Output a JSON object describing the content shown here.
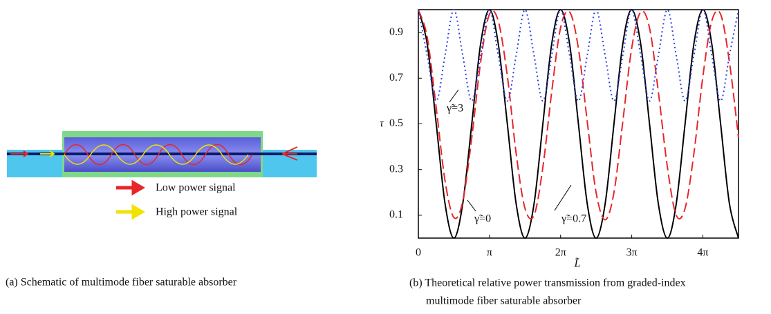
{
  "schematic": {
    "legend": [
      "Low power signal",
      "High power signal"
    ],
    "caption": "(a) Schematic of multimode fiber saturable absorber"
  },
  "chart_data": {
    "type": "line",
    "caption": [
      "(b) Theoretical relative power transmission from graded-index",
      "multimode fiber saturable absorber"
    ],
    "x_label": "L̃",
    "y_label": "τ",
    "x": [
      0,
      0.39,
      0.79,
      1.18,
      1.57,
      1.96,
      2.36,
      2.75,
      3.14,
      3.53,
      3.93,
      4.32,
      4.71,
      5.11,
      5.5,
      5.89,
      6.28,
      6.68,
      7.07,
      7.46,
      7.85,
      8.25,
      8.64,
      9.03,
      9.42,
      9.82,
      10.21,
      10.6,
      11.0,
      11.39,
      11.78,
      12.17,
      12.57,
      12.96,
      13.35,
      13.74,
      14.14
    ],
    "series": [
      {
        "name": "γ̃=0",
        "color": "#000000",
        "dash": "",
        "values": [
          1,
          0.85,
          0.5,
          0.15,
          0,
          0.15,
          0.5,
          0.85,
          1,
          0.85,
          0.5,
          0.15,
          0,
          0.15,
          0.5,
          0.85,
          1,
          0.85,
          0.5,
          0.15,
          0,
          0.15,
          0.5,
          0.85,
          1,
          0.85,
          0.5,
          0.15,
          0,
          0.15,
          0.5,
          0.85,
          1,
          0.85,
          0.5,
          0.15,
          0
        ]
      },
      {
        "name": "γ̃=0.7",
        "color": "#e8262a",
        "dash": "14 6",
        "values": [
          1,
          0.88,
          0.57,
          0.25,
          0.09,
          0.16,
          0.44,
          0.77,
          0.98,
          0.95,
          0.71,
          0.37,
          0.13,
          0.1,
          0.31,
          0.64,
          0.92,
          0.99,
          0.83,
          0.51,
          0.2,
          0.08,
          0.2,
          0.51,
          0.83,
          0.99,
          0.92,
          0.64,
          0.31,
          0.1,
          0.13,
          0.37,
          0.71,
          0.95,
          0.98,
          0.77,
          0.44
        ]
      },
      {
        "name": "γ̃=3",
        "color": "#2b3fe0",
        "dash": "2 4",
        "values": [
          1,
          0.8,
          0.6,
          0.8,
          1,
          0.8,
          0.6,
          0.8,
          1,
          0.8,
          0.6,
          0.8,
          1,
          0.8,
          0.6,
          0.8,
          1,
          0.8,
          0.6,
          0.8,
          1,
          0.8,
          0.6,
          0.8,
          1,
          0.8,
          0.6,
          0.8,
          1,
          0.8,
          0.6,
          0.8,
          1,
          0.8,
          0.6,
          0.8,
          1
        ]
      }
    ],
    "xlim": [
      0,
      14.14
    ],
    "ylim": [
      0,
      1
    ],
    "xticks": [
      0,
      {
        "value": 3.1416,
        "label": "π"
      },
      {
        "value": 6.2832,
        "label": "2π"
      },
      {
        "value": 9.4248,
        "label": "3π"
      },
      {
        "value": 12.566,
        "label": "4π"
      }
    ],
    "yticks": [
      0.1,
      0.3,
      0.5,
      0.7,
      0.9
    ]
  }
}
